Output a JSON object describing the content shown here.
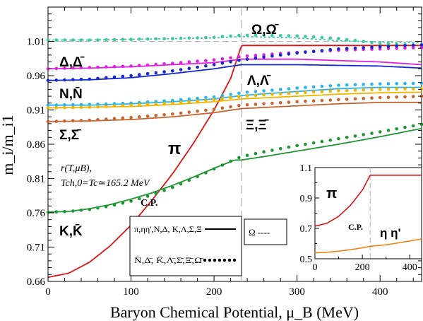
{
  "chart_data": [
    {
      "type": "line",
      "xlabel": "Baryon Chemical Potential, μ_B (MeV)",
      "ylabel": "m_i/m_i1",
      "xlim": [
        0,
        450
      ],
      "ylim": [
        0.66,
        1.06
      ],
      "xticks": [
        "0",
        "100",
        "200",
        "300",
        "400"
      ],
      "yticks": [
        "0.66",
        "0.71",
        "0.76",
        "0.81",
        "0.86",
        "0.91",
        "0.96",
        "1.01"
      ],
      "grid": false,
      "critical_point": {
        "x": 233,
        "label": "C.P."
      },
      "reference_line_y": 1.01,
      "annotation": {
        "line1": "r(T,μB),",
        "line2": "Tch,0=Tc≃165.2 MeV"
      },
      "series_labels": {
        "omega": "Ω,Ω̄",
        "delta": "Δ,Δ̄",
        "nucleon": "N,N̄",
        "lambda": "Λ,Λ̄",
        "xi": "Ξ,Ξ̄",
        "sigma": "Σ,Σ̄",
        "pion": "π",
        "kaon": "K,K̄"
      },
      "legend": {
        "entry1": "π,ηη',N,Δ, K,Λ,Σ,Ξ",
        "entry2": "N̄,Δ̄, K̄,Λ̄,Σ̄,Ξ̄,Ω̄",
        "entry3": "Ω ----",
        "placement": "bottom-center"
      },
      "colors": {
        "omega": "#3cc8a0",
        "delta": "#e020e0",
        "nucleon": "#1428d0",
        "lambda": "#28b4ee",
        "xi": "#f0b400",
        "sigma": "#c86432",
        "pion": "#e01414",
        "kaon": "#1e9632"
      },
      "series": [
        {
          "name": "π",
          "color_key": "pion",
          "style": "solid",
          "x": [
            0,
            25,
            50,
            75,
            100,
            125,
            150,
            175,
            200,
            220,
            233,
            260,
            300,
            350,
            400,
            450
          ],
          "y": [
            0.666,
            0.672,
            0.688,
            0.712,
            0.742,
            0.778,
            0.817,
            0.861,
            0.91,
            0.956,
            1.004,
            1.004,
            1.004,
            1.004,
            1.004,
            1.004
          ]
        },
        {
          "name": "Ω (line)",
          "color_key": "omega",
          "style": "dashed",
          "x": [
            0,
            50,
            100,
            150,
            200,
            233,
            300,
            350,
            400,
            450
          ],
          "y": [
            1.012,
            1.012,
            1.013,
            1.014,
            1.015,
            1.017,
            1.015,
            1.011,
            1.009,
            1.008
          ]
        },
        {
          "name": "Ω̄ (dots)",
          "color_key": "omega",
          "style": "dots",
          "x": [
            0,
            50,
            100,
            150,
            200,
            233,
            260,
            300,
            350,
            400,
            450
          ],
          "y": [
            1.012,
            1.012,
            1.013,
            1.014,
            1.016,
            1.019,
            1.019,
            1.018,
            1.014,
            1.007,
            1.004
          ]
        },
        {
          "name": "Δ",
          "color_key": "delta",
          "style": "solid",
          "x": [
            0,
            50,
            100,
            150,
            200,
            233,
            300,
            350,
            400,
            450
          ],
          "y": [
            0.97,
            0.971,
            0.973,
            0.976,
            0.979,
            0.984,
            0.984,
            0.982,
            0.98,
            0.976
          ]
        },
        {
          "name": "Δ̄",
          "color_key": "delta",
          "style": "dots",
          "x": [
            0,
            50,
            100,
            150,
            200,
            233,
            300,
            350,
            400,
            450
          ],
          "y": [
            0.97,
            0.972,
            0.974,
            0.978,
            0.983,
            0.988,
            0.994,
            0.997,
            0.999,
            1.001
          ]
        },
        {
          "name": "N",
          "color_key": "nucleon",
          "style": "solid",
          "x": [
            0,
            50,
            100,
            150,
            200,
            233,
            300,
            350,
            400,
            450
          ],
          "y": [
            0.953,
            0.954,
            0.957,
            0.963,
            0.97,
            0.976,
            0.976,
            0.975,
            0.974,
            0.971
          ]
        },
        {
          "name": "N̄",
          "color_key": "nucleon",
          "style": "dots",
          "x": [
            0,
            50,
            100,
            150,
            200,
            233,
            300,
            350,
            400,
            450
          ],
          "y": [
            0.953,
            0.955,
            0.96,
            0.967,
            0.976,
            0.983,
            0.993,
            0.999,
            1.002,
            1.005
          ]
        },
        {
          "name": "Λ",
          "color_key": "lambda",
          "style": "solid",
          "x": [
            0,
            50,
            100,
            150,
            200,
            233,
            300,
            350,
            400,
            450
          ],
          "y": [
            0.917,
            0.917,
            0.919,
            0.922,
            0.926,
            0.931,
            0.937,
            0.941,
            0.943,
            0.943
          ]
        },
        {
          "name": "Λ̄",
          "color_key": "lambda",
          "style": "dots",
          "x": [
            0,
            50,
            100,
            150,
            200,
            233,
            300,
            350,
            400,
            450
          ],
          "y": [
            0.917,
            0.918,
            0.92,
            0.924,
            0.929,
            0.935,
            0.942,
            0.946,
            0.948,
            0.949
          ]
        },
        {
          "name": "Ξ",
          "color_key": "xi",
          "style": "solid",
          "x": [
            0,
            50,
            100,
            150,
            200,
            233,
            300,
            350,
            400,
            450
          ],
          "y": [
            0.913,
            0.914,
            0.915,
            0.918,
            0.922,
            0.926,
            0.93,
            0.933,
            0.935,
            0.936
          ]
        },
        {
          "name": "Ξ̄",
          "color_key": "xi",
          "style": "dots",
          "x": [
            0,
            50,
            100,
            150,
            200,
            233,
            300,
            350,
            400,
            450
          ],
          "y": [
            0.913,
            0.914,
            0.917,
            0.92,
            0.925,
            0.93,
            0.935,
            0.938,
            0.94,
            0.941
          ]
        },
        {
          "name": "Σ",
          "color_key": "sigma",
          "style": "solid",
          "x": [
            0,
            50,
            100,
            150,
            200,
            233,
            300,
            350,
            400,
            450
          ],
          "y": [
            0.893,
            0.894,
            0.896,
            0.9,
            0.906,
            0.912,
            0.916,
            0.919,
            0.921,
            0.921
          ]
        },
        {
          "name": "Σ̄",
          "color_key": "sigma",
          "style": "dots",
          "x": [
            0,
            50,
            100,
            150,
            200,
            233,
            300,
            350,
            400,
            450
          ],
          "y": [
            0.893,
            0.895,
            0.899,
            0.904,
            0.911,
            0.917,
            0.922,
            0.925,
            0.928,
            0.93
          ]
        },
        {
          "name": "K",
          "color_key": "kaon",
          "style": "solid",
          "x": [
            0,
            25,
            50,
            75,
            100,
            125,
            150,
            175,
            200,
            225,
            233,
            260,
            300,
            350,
            400,
            450
          ],
          "y": [
            0.761,
            0.762,
            0.766,
            0.772,
            0.78,
            0.789,
            0.8,
            0.812,
            0.825,
            0.837,
            0.837,
            0.842,
            0.85,
            0.86,
            0.871,
            0.883
          ]
        },
        {
          "name": "K̄",
          "color_key": "kaon",
          "style": "dots",
          "x": [
            0,
            25,
            50,
            75,
            100,
            125,
            150,
            175,
            200,
            225,
            233,
            260,
            300,
            350,
            400,
            450
          ],
          "y": [
            0.761,
            0.762,
            0.765,
            0.77,
            0.777,
            0.786,
            0.797,
            0.81,
            0.824,
            0.838,
            0.842,
            0.849,
            0.858,
            0.868,
            0.878,
            0.889
          ]
        }
      ]
    },
    {
      "type": "line",
      "placement": "inset",
      "xlim": [
        0,
        450
      ],
      "ylim": [
        0.5,
        1.1
      ],
      "xticks": [
        "0",
        "200",
        "400"
      ],
      "yticks": [
        "0.5",
        "0.7",
        "0.9",
        "1.1"
      ],
      "critical_point_label": "C.P.",
      "labels": {
        "pion": "π",
        "eta": "η η'"
      },
      "colors": {
        "pion": "#e01414",
        "eta": "#f08214"
      },
      "series": [
        {
          "name": "π",
          "color_key": "pion",
          "x": [
            0,
            50,
            100,
            150,
            200,
            233,
            300,
            350,
            400,
            450
          ],
          "y": [
            0.715,
            0.733,
            0.779,
            0.852,
            0.951,
            1.05,
            1.05,
            1.05,
            1.05,
            1.05
          ]
        },
        {
          "name": "η η'",
          "color_key": "eta",
          "x": [
            0,
            50,
            100,
            150,
            200,
            233,
            300,
            350,
            400,
            450
          ],
          "y": [
            0.54,
            0.543,
            0.55,
            0.56,
            0.572,
            0.582,
            0.592,
            0.604,
            0.617,
            0.63
          ]
        }
      ]
    }
  ]
}
